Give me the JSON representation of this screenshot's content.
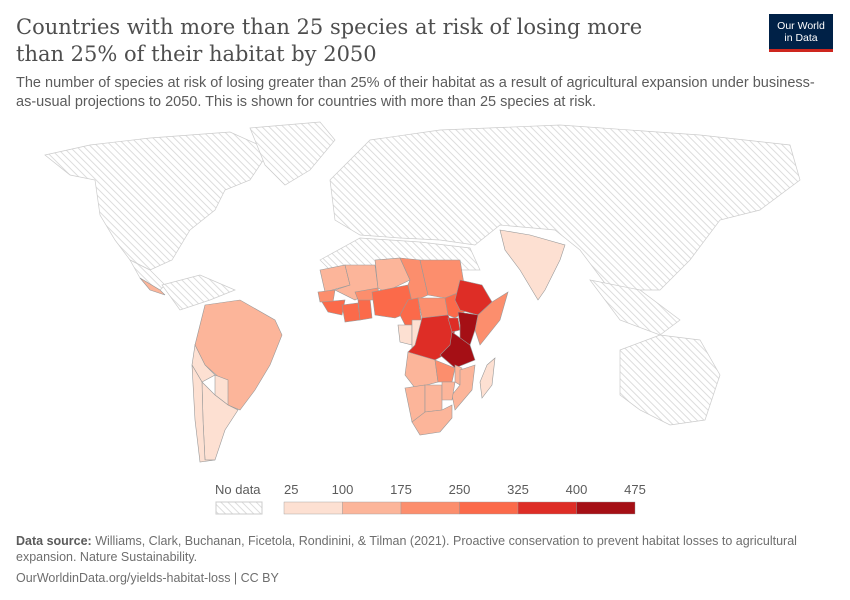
{
  "header": {
    "title": "Countries with more than 25 species at risk of losing more than 25% of their habitat by 2050",
    "subtitle": "The number of species at risk of losing greater than 25% of their habitat as a result of agricultural expansion under business-as-usual projections to 2050. This is shown for countries with more than 25 species at risk.",
    "logo_line1": "Our World",
    "logo_line2": "in Data"
  },
  "chart_data": {
    "type": "choropleth",
    "legend": {
      "no_data_label": "No data",
      "ticks": [
        "25",
        "100",
        "175",
        "250",
        "325",
        "400",
        "475"
      ],
      "bins": [
        [
          25,
          100
        ],
        [
          100,
          175
        ],
        [
          175,
          250
        ],
        [
          250,
          325
        ],
        [
          325,
          400
        ],
        [
          400,
          475
        ]
      ],
      "colors": [
        "#fde0d2",
        "#fcb59a",
        "#fc8e6d",
        "#fb6a4a",
        "#de2d26",
        "#a50f15"
      ],
      "no_data_color": "#e6e6e6"
    },
    "values_bin": {
      "Brazil": 1,
      "Argentina": 0,
      "Chile": 0,
      "Paraguay": 0,
      "Bolivia": 0,
      "Panama": 1,
      "India": 0,
      "Mauritania": 1,
      "Mali": 1,
      "Niger": 1,
      "Chad": 2,
      "Sudan": 2,
      "Ethiopia": 4,
      "Somalia": 2,
      "Kenya": 5,
      "Tanzania": 5,
      "Uganda": 4,
      "Democratic Republic of Congo": 4,
      "Congo": 0,
      "Gabon": 0,
      "Cameroon": 3,
      "Nigeria": 3,
      "Central African Republic": 2,
      "South Sudan": 3,
      "Guinea": 3,
      "Senegal": 2,
      "Ivory Coast": 3,
      "Ghana": 3,
      "Angola": 1,
      "Zambia": 2,
      "Namibia": 1,
      "Botswana": 1,
      "Zimbabwe": 1,
      "Mozambique": 1,
      "South Africa": 1,
      "Madagascar": 0,
      "Malawi": 1,
      "Burkina Faso": 2
    }
  },
  "footer": {
    "source_label": "Data source:",
    "source_text": " Williams, Clark, Buchanan, Ficetola, Rondinini, & Tilman (2021). Proactive conservation to prevent habitat losses to agricultural expansion. Nature Sustainability.",
    "url": "OurWorldinData.org/yields-habitat-loss | CC BY"
  }
}
